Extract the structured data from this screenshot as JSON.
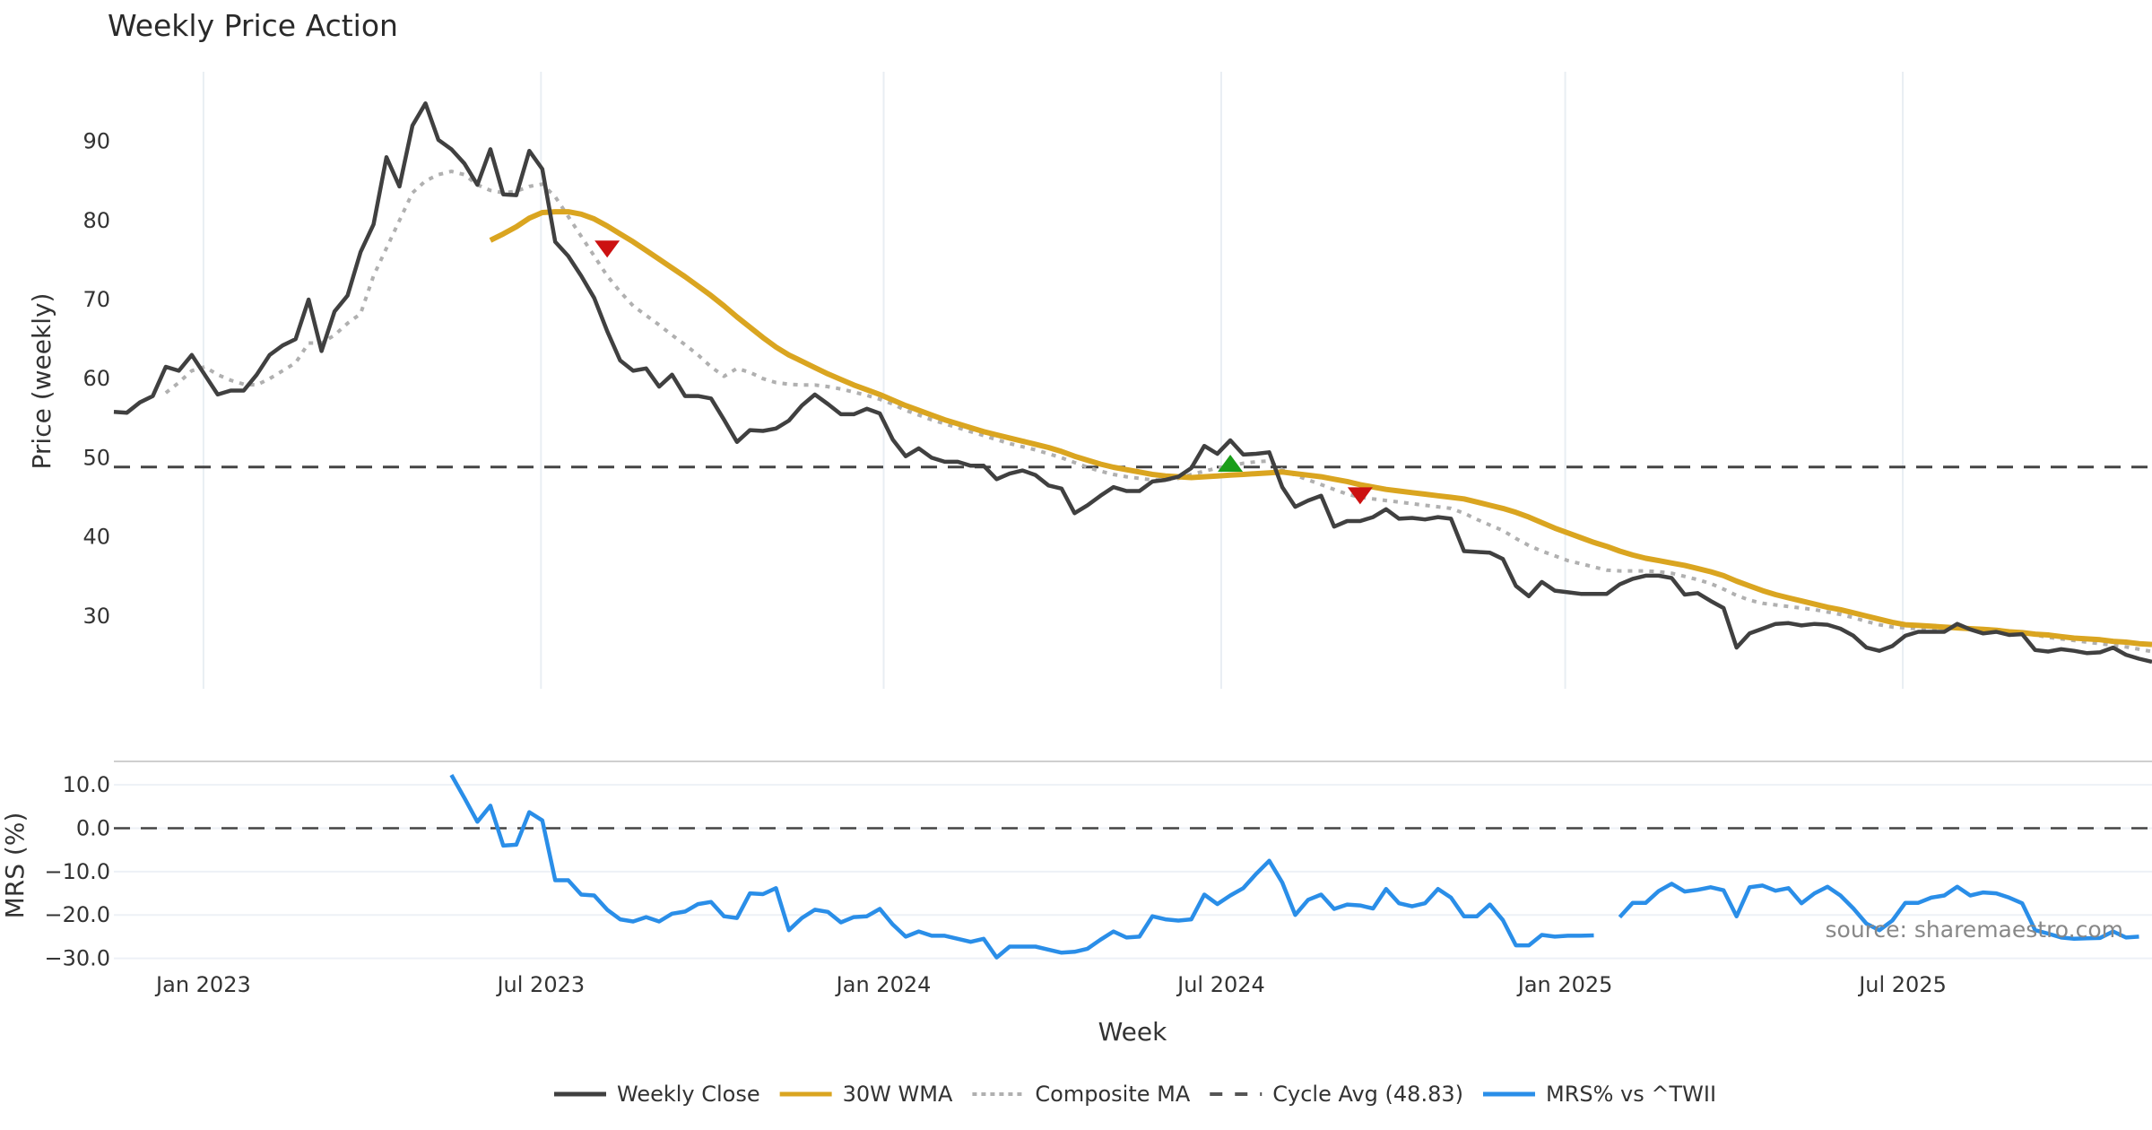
{
  "chart_data": {
    "type": "line",
    "title": "Weekly Price Action",
    "xlabel": "Week",
    "source": "source: sharemaestro.com",
    "x_ticks": [
      {
        "label": "Jan 2023",
        "week": 6.9
      },
      {
        "label": "Jul 2023",
        "week": 32.9
      },
      {
        "label": "Jan 2024",
        "week": 59.3
      },
      {
        "label": "Jul 2024",
        "week": 85.3
      },
      {
        "label": "Jan 2025",
        "week": 111.8
      },
      {
        "label": "Jul 2025",
        "week": 137.8
      }
    ],
    "x_range_weeks": [
      0,
      157
    ],
    "price_panel": {
      "ylabel": "Price (weekly)",
      "ylim": [
        20.8,
        98.8
      ],
      "y_ticks": [
        "30",
        "40",
        "50",
        "60",
        "70",
        "80",
        "90"
      ],
      "cycle_avg": 48.83,
      "series": [
        {
          "name": "Weekly Close",
          "color": "#404040",
          "start_week": 0,
          "values": [
            55.8,
            55.7,
            57,
            57.8,
            61.5,
            61,
            63,
            60.5,
            58,
            58.5,
            58.5,
            60.5,
            63,
            64.2,
            65,
            70,
            63.5,
            68.5,
            70.5,
            76,
            79.5,
            88,
            84.3,
            92,
            94.8,
            90.2,
            89,
            87.2,
            84.5,
            89,
            83.3,
            83.2,
            88.8,
            86.5,
            77.3,
            75.5,
            73,
            70.2,
            66,
            62.3,
            61,
            61.3,
            59,
            60.5,
            57.8,
            57.8,
            57.5,
            54.8,
            52,
            53.5,
            53.4,
            53.7,
            54.7,
            56.6,
            58,
            56.8,
            55.5,
            55.5,
            56.2,
            55.6,
            52.3,
            50.2,
            51.2,
            50,
            49.5,
            49.5,
            49,
            49,
            47.3,
            48,
            48.4,
            47.8,
            46.5,
            46.1,
            43,
            44,
            45.2,
            46.3,
            45.8,
            45.8,
            47,
            47.2,
            47.6,
            48.7,
            51.5,
            50.5,
            52.2,
            50.4,
            50.5,
            50.7,
            46.3,
            43.8,
            44.6,
            45.2,
            41.3,
            42,
            42,
            42.5,
            43.5,
            42.3,
            42.4,
            42.2,
            42.5,
            42.3,
            38.2,
            38.1,
            38,
            37.2,
            33.8,
            32.5,
            34.3,
            33.2,
            33,
            32.8,
            32.8,
            32.8,
            34,
            34.7,
            35.1,
            35.1,
            34.8,
            32.7,
            32.9,
            31.9,
            31,
            26,
            27.8,
            28.4,
            29,
            29.1,
            28.8,
            29,
            28.9,
            28.4,
            27.5,
            26,
            25.6,
            26.2,
            27.5,
            28,
            28,
            28,
            29,
            28.3,
            27.8,
            28,
            27.6,
            27.7,
            25.7,
            25.5,
            25.8,
            25.6,
            25.3,
            25.4,
            26,
            25.1,
            24.6,
            24.2
          ]
        },
        {
          "name": "30W WMA",
          "color": "#DAA520",
          "start_week": 29,
          "values": [
            77.5,
            78.3,
            79.2,
            80.3,
            81,
            81.1,
            81.1,
            80.8,
            80.2,
            79.3,
            78.3,
            77.3,
            76.2,
            75.1,
            74,
            72.9,
            71.7,
            70.5,
            69.2,
            67.8,
            66.5,
            65.2,
            64,
            63,
            62.2,
            61.4,
            60.6,
            59.9,
            59.2,
            58.6,
            58,
            57.3,
            56.6,
            56,
            55.4,
            54.8,
            54.3,
            53.8,
            53.3,
            52.9,
            52.5,
            52.1,
            51.7,
            51.3,
            50.8,
            50.2,
            49.7,
            49.2,
            48.8,
            48.5,
            48.2,
            47.9,
            47.7,
            47.6,
            47.5,
            47.6,
            47.7,
            47.8,
            47.9,
            48,
            48.1,
            48.2,
            48,
            47.8,
            47.6,
            47.3,
            47,
            46.6,
            46.3,
            46,
            45.8,
            45.6,
            45.4,
            45.2,
            45,
            44.8,
            44.4,
            44,
            43.6,
            43.1,
            42.5,
            41.8,
            41.1,
            40.5,
            39.9,
            39.3,
            38.8,
            38.2,
            37.7,
            37.3,
            37,
            36.7,
            36.4,
            36,
            35.6,
            35.1,
            34.4,
            33.8,
            33.2,
            32.7,
            32.3,
            31.9,
            31.5,
            31.1,
            30.8,
            30.4,
            30,
            29.6,
            29.2,
            28.9,
            28.8,
            28.7,
            28.6,
            28.5,
            28.4,
            28.3,
            28.2,
            28,
            27.9,
            27.7,
            27.6,
            27.4,
            27.2,
            27.1,
            27,
            26.8,
            26.7,
            26.5,
            26.4
          ]
        },
        {
          "name": "Composite MA",
          "color": "#b0b0b0",
          "start_week": 4,
          "values": [
            58.2,
            59.5,
            61,
            61.5,
            60.5,
            59.8,
            59.3,
            59.2,
            60,
            61,
            62,
            64.5,
            64.5,
            65.5,
            67,
            68.2,
            73,
            76.5,
            80,
            83.5,
            85,
            85.8,
            86.2,
            85.8,
            84.5,
            83.8,
            83.5,
            83.7,
            84.3,
            84.6,
            83,
            80.5,
            78,
            75.5,
            73,
            71,
            69.2,
            68,
            66.8,
            65.5,
            64.3,
            63,
            61.5,
            60.3,
            61.3,
            60.8,
            60,
            59.5,
            59.3,
            59.2,
            59.2,
            59,
            58.7,
            58.3,
            57.9,
            57.4,
            56.8,
            56,
            55.4,
            54.8,
            54.3,
            53.8,
            53.3,
            52.8,
            52.3,
            51.8,
            51.4,
            51,
            50.5,
            50,
            49.4,
            48.8,
            48.3,
            47.9,
            47.6,
            47.4,
            47.2,
            47.2,
            47.4,
            47.9,
            48.3,
            48.7,
            49,
            49.3,
            49.5,
            49.6,
            48.5,
            47.8,
            47.2,
            46.6,
            46,
            45.4,
            45,
            44.8,
            44.6,
            44.4,
            44.2,
            44,
            43.8,
            43.6,
            43,
            42.2,
            41.5,
            40.8,
            39.8,
            38.9,
            38.2,
            37.6,
            37,
            36.6,
            36.2,
            35.8,
            35.7,
            35.7,
            35.7,
            35.6,
            35.4,
            35,
            34.6,
            34.1,
            33.4,
            32.6,
            32,
            31.6,
            31.4,
            31.2,
            31,
            30.8,
            30.5,
            30.2,
            29.8,
            29.3,
            28.9,
            28.6,
            28.5,
            28.4,
            28.4,
            28.4,
            28.5,
            28.5,
            28.4,
            28.3,
            28.1,
            27.9,
            27.6,
            27.3,
            27.1,
            26.9,
            26.7,
            26.5,
            26.3,
            26.1,
            25.8,
            25.5
          ]
        }
      ],
      "signals": [
        {
          "type": "sell",
          "week": 38,
          "price": 76.5,
          "color": "#cc1111"
        },
        {
          "type": "buy",
          "week": 86,
          "price": 49.2,
          "color": "#1a9e1a"
        },
        {
          "type": "sell",
          "week": 96,
          "price": 45.3,
          "color": "#cc1111"
        }
      ]
    },
    "mrs_panel": {
      "ylabel": "MRS (%)",
      "ylim": [
        -30.5,
        15
      ],
      "y_ticks": [
        "10.0",
        "0.0",
        "−10.0",
        "−20.0",
        "−30.0"
      ],
      "y_tick_values": [
        10,
        0,
        -10,
        -20,
        -30
      ],
      "zero_line": 0,
      "series": {
        "name": "MRS% vs ^TWII",
        "color": "#2a8ee8",
        "start_week": 26,
        "values": [
          12.3,
          7,
          1.5,
          5.2,
          -4,
          -3.8,
          3.7,
          1.8,
          -12,
          -12,
          -15.3,
          -15.5,
          -18.8,
          -21,
          -21.5,
          -20.5,
          -21.5,
          -19.7,
          -19.2,
          -17.5,
          -17,
          -20.3,
          -20.7,
          -15,
          -15.2,
          -13.8,
          -23.5,
          -20.7,
          -18.8,
          -19.3,
          -21.7,
          -20.5,
          -20.3,
          -18.6,
          -22.2,
          -25,
          -23.8,
          -24.8,
          -24.8,
          -25.5,
          -26.2,
          -25.5,
          -29.8,
          -27.3,
          -27.3,
          -27.3,
          -28,
          -28.7,
          -28.5,
          -27.8,
          -25.7,
          -23.8,
          -25.2,
          -25,
          -20.3,
          -21,
          -21.3,
          -21,
          -15.3,
          -17.5,
          -15.5,
          -13.8,
          -10.5,
          -7.5,
          -12.5,
          -20,
          -16.5,
          -15.3,
          -18.6,
          -17.6,
          -17.8,
          -18.5,
          -14,
          -17.3,
          -18,
          -17.3,
          -14,
          -16,
          -20.3,
          -20.3,
          -17.6,
          -21.2,
          -27,
          -27,
          -24.6,
          -25,
          -24.8,
          -24.8,
          -24.7,
          null,
          -20.5,
          -17.2,
          -17.2,
          -14.5,
          -12.8,
          -14.6,
          -14.2,
          -13.6,
          -14.3,
          -20.3,
          -13.6,
          -13.2,
          -14.4,
          -13.8,
          -17.3,
          -15,
          -13.5,
          -15.5,
          -18.5,
          -22,
          -23.5,
          -21.3,
          -17.2,
          -17.2,
          -16,
          -15.5,
          -13.5,
          -15.5,
          -14.8,
          -15,
          -16,
          -17.3,
          -23.5,
          -24.3,
          -25.2,
          -25.5,
          -25.4,
          -25.3,
          -23.8,
          -25.2,
          -25
        ]
      }
    },
    "legend": {
      "placement": "bottom-center",
      "items": [
        {
          "label": "Weekly Close",
          "color": "#404040",
          "style": "solid"
        },
        {
          "label": "30W WMA",
          "color": "#DAA520",
          "style": "solid"
        },
        {
          "label": "Composite MA",
          "color": "#b0b0b0",
          "style": "dotted"
        },
        {
          "label": "Cycle Avg (48.83)",
          "color": "#555555",
          "style": "dashed"
        },
        {
          "label": "MRS% vs ^TWII",
          "color": "#2a8ee8",
          "style": "solid"
        }
      ]
    }
  }
}
